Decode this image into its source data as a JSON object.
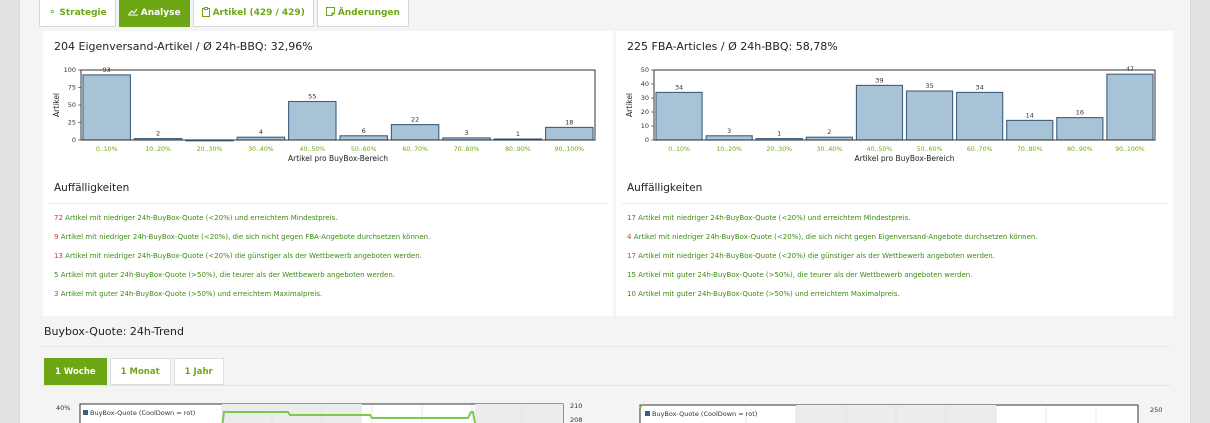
{
  "tabs": [
    {
      "label": "Strategie",
      "icon": "lightbulb-icon",
      "active": false
    },
    {
      "label": "Analyse",
      "icon": "line-chart-icon",
      "active": true
    },
    {
      "label": "Artikel (429 / 429)",
      "icon": "clipboard-icon",
      "active": false
    },
    {
      "label": "Änderungen",
      "icon": "note-icon",
      "active": false
    }
  ],
  "left": {
    "title": "204 Eigenversand-Artikel / Ø 24h-BBQ: 32,96%",
    "findings_title": "Auffälligkeiten",
    "findings": [
      {
        "count": "72",
        "count_color": "#d9342b",
        "text": "Artikel mit niedriger 24h-BuyBox-Quote (<20%) und erreichtem Mindestpreis."
      },
      {
        "count": "9",
        "count_color": "#d9342b",
        "text": "Artikel mit niedriger 24h-BuyBox-Quote (<20%), die sich nicht gegen FBA-Angebote durchsetzen können."
      },
      {
        "count": "13",
        "count_color": "#d9342b",
        "text": "Artikel mit niedriger 24h-BuyBox-Quote (<20%) die günstiger als der Wettbewerb angeboten werden."
      },
      {
        "count": "5",
        "count_color": "#3e8a14",
        "text": "Artikel mit guter 24h-BuyBox-Quote (>50%), die teurer als der Wettbewerb angeboten werden."
      },
      {
        "count": "3",
        "count_color": "#3e8a14",
        "text": "Artikel mit guter 24h-BuyBox-Quote (>50%) und erreichtem Maximalpreis."
      }
    ]
  },
  "right": {
    "title": "225 FBA-Articles / Ø 24h-BBQ: 58,78%",
    "findings_title": "Auffälligkeiten",
    "findings": [
      {
        "count": "17",
        "count_color": "#d9342b",
        "text": "Artikel mit niedriger 24h-BuyBox-Quote (<20%) und erreichtem Mindestpreis."
      },
      {
        "count": "4",
        "count_color": "#d9342b",
        "text": "Artikel mit niedriger 24h-BuyBox-Quote (<20%), die sich nicht gegen Eigenversand-Angebote durchsetzen können."
      },
      {
        "count": "17",
        "count_color": "#d9342b",
        "text": "Artikel mit niedriger 24h-BuyBox-Quote (<20%) die günstiger als der Wettbewerb angeboten werden."
      },
      {
        "count": "15",
        "count_color": "#3e8a14",
        "text": "Artikel mit guter 24h-BuyBox-Quote (>50%), die teurer als der Wettbewerb angeboten werden."
      },
      {
        "count": "10",
        "count_color": "#3e8a14",
        "text": "Artikel mit guter 24h-BuyBox-Quote (>50%) und erreichtem Maximalpreis."
      }
    ]
  },
  "trend": {
    "title": "Buybox-Quote: 24h-Trend",
    "ranges": [
      {
        "label": "1 Woche",
        "active": true
      },
      {
        "label": "1 Monat",
        "active": false
      },
      {
        "label": "1 Jahr",
        "active": false
      }
    ],
    "left_legend": "BuyBox-Quote (CoolDown = rot)",
    "left_y_top": "40%",
    "left_y2_top": "210",
    "left_y2_next": "208",
    "right_legend": "BuyBox-Quote (CoolDown = rot)",
    "right_y2_top": "250"
  },
  "chart_data": [
    {
      "type": "bar",
      "categories": [
        "0..10%",
        "10..20%",
        "20..30%",
        "30..40%",
        "40..50%",
        "50..60%",
        "60..70%",
        "70..80%",
        "80..90%",
        "90..100%"
      ],
      "values": [
        93,
        2,
        0,
        4,
        55,
        6,
        22,
        3,
        1,
        18
      ],
      "data_labels": [
        "93",
        "2",
        "",
        "4",
        "55",
        "6",
        "22",
        "3",
        "1",
        "18"
      ],
      "yticks": [
        0,
        25,
        50,
        75,
        100
      ],
      "ylim": [
        0,
        100
      ],
      "xlabel": "Artikel pro BuyBox-Bereich",
      "ylabel": "Artikel",
      "bar_color": "#a9c3d6",
      "bar_stroke": "#3d5f80"
    },
    {
      "type": "bar",
      "categories": [
        "0..10%",
        "10..20%",
        "20..30%",
        "30..40%",
        "40..50%",
        "50..60%",
        "60..70%",
        "70..80%",
        "80..90%",
        "90..100%"
      ],
      "values": [
        34,
        3,
        1,
        2,
        39,
        35,
        34,
        14,
        16,
        47
      ],
      "data_labels": [
        "34",
        "3",
        "1",
        "2",
        "39",
        "35",
        "34",
        "14",
        "16",
        "47"
      ],
      "yticks": [
        0,
        10,
        20,
        30,
        40,
        50
      ],
      "ylim": [
        0,
        50
      ],
      "xlabel": "Artikel pro BuyBox-Bereich",
      "ylabel": "Artikel",
      "bar_color": "#a9c3d6",
      "bar_stroke": "#3d5f80"
    }
  ]
}
